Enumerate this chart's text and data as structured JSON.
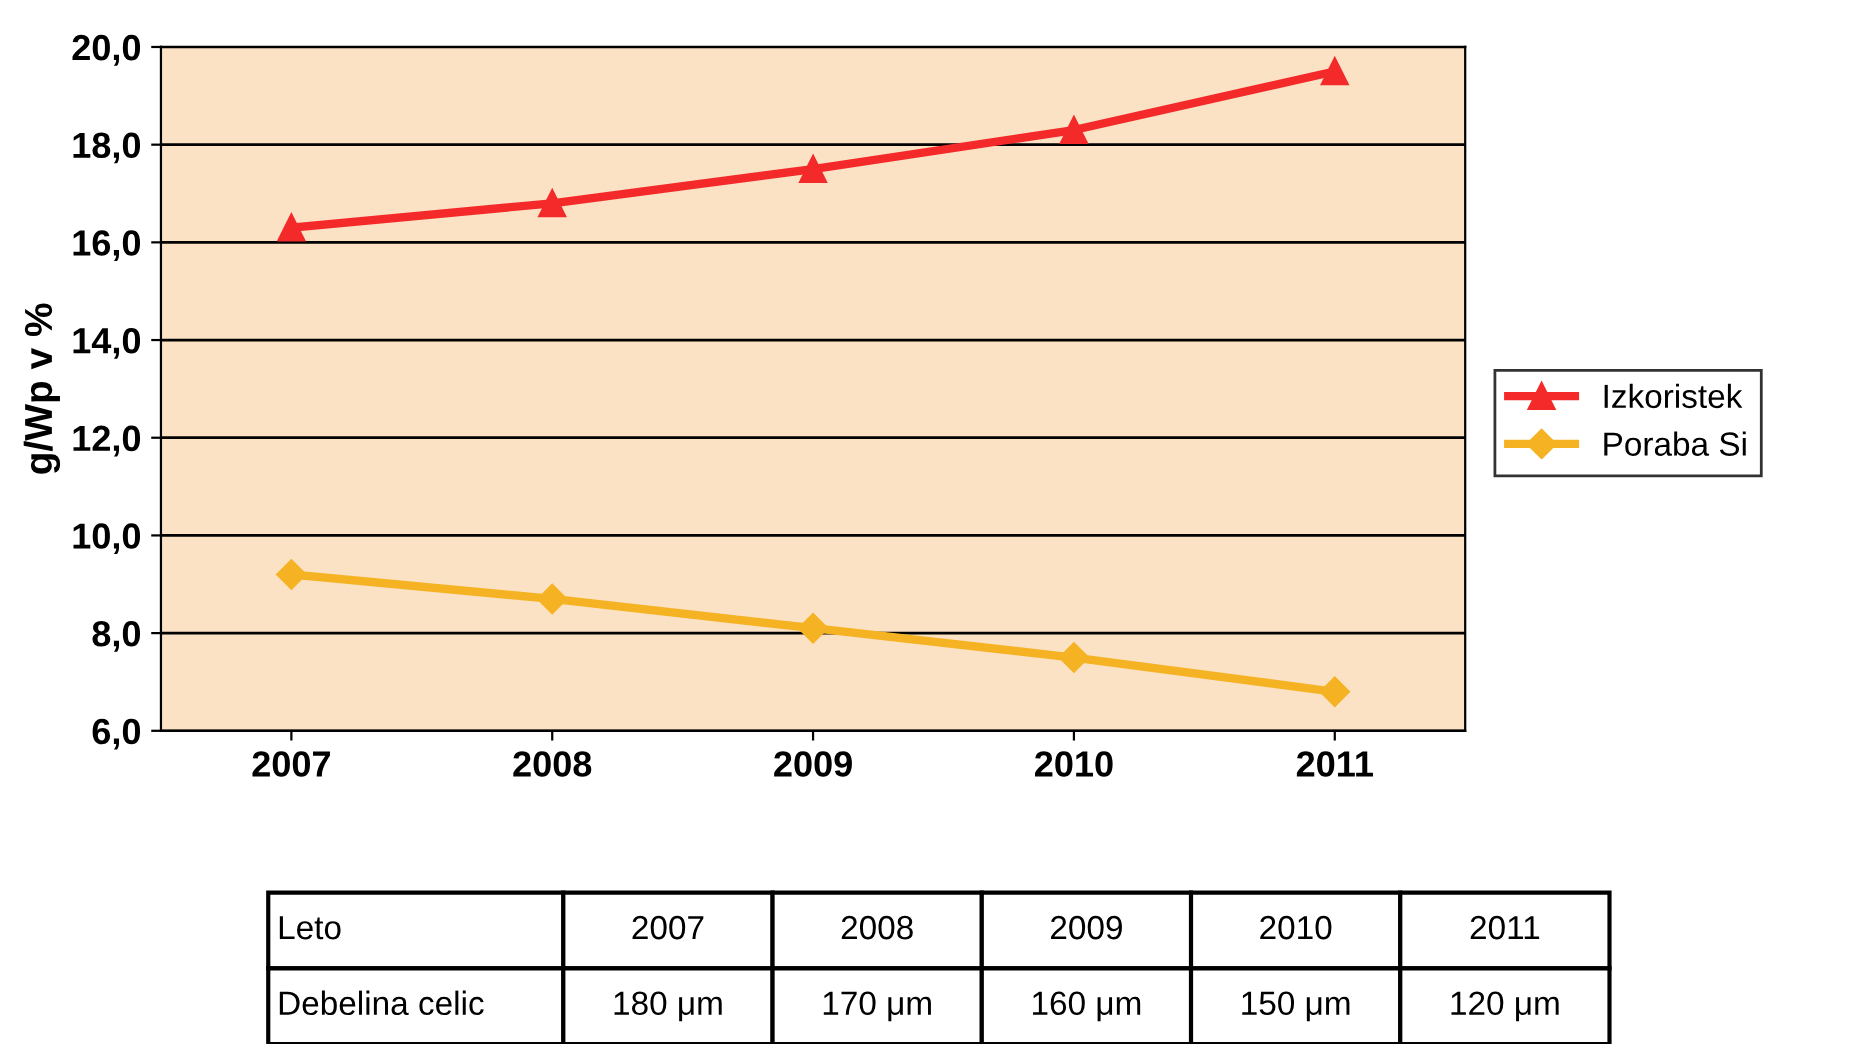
{
  "chart_data": {
    "type": "line",
    "ylabel": "g/Wp v %",
    "categories": [
      "2007",
      "2008",
      "2009",
      "2010",
      "2011"
    ],
    "series": [
      {
        "name": "Izkoristek",
        "color": "#f42a2a",
        "marker": "triangle",
        "values": [
          16.3,
          16.8,
          17.5,
          18.3,
          19.5
        ]
      },
      {
        "name": "Poraba Si",
        "color": "#f5b324",
        "marker": "diamond",
        "values": [
          9.2,
          8.7,
          8.1,
          7.5,
          6.8
        ]
      }
    ],
    "ylim": [
      6,
      20
    ],
    "yticks": [
      {
        "value": 6,
        "label": "6,0"
      },
      {
        "value": 8,
        "label": "8,0"
      },
      {
        "value": 10,
        "label": "10,0"
      },
      {
        "value": 12,
        "label": "12,0"
      },
      {
        "value": 14,
        "label": "14,0"
      },
      {
        "value": 16,
        "label": "16,0"
      },
      {
        "value": 18,
        "label": "18,0"
      },
      {
        "value": 20,
        "label": "20,0"
      }
    ],
    "grid": "y",
    "legend": "right",
    "line_style": "solid",
    "annotations": [
      "Leto",
      "2007",
      "2008",
      "2009",
      "2010",
      "2011",
      "Debelina celic",
      "180 μm",
      "170 μm",
      "160 μm",
      "150 μm",
      "120 μm"
    ]
  }
}
